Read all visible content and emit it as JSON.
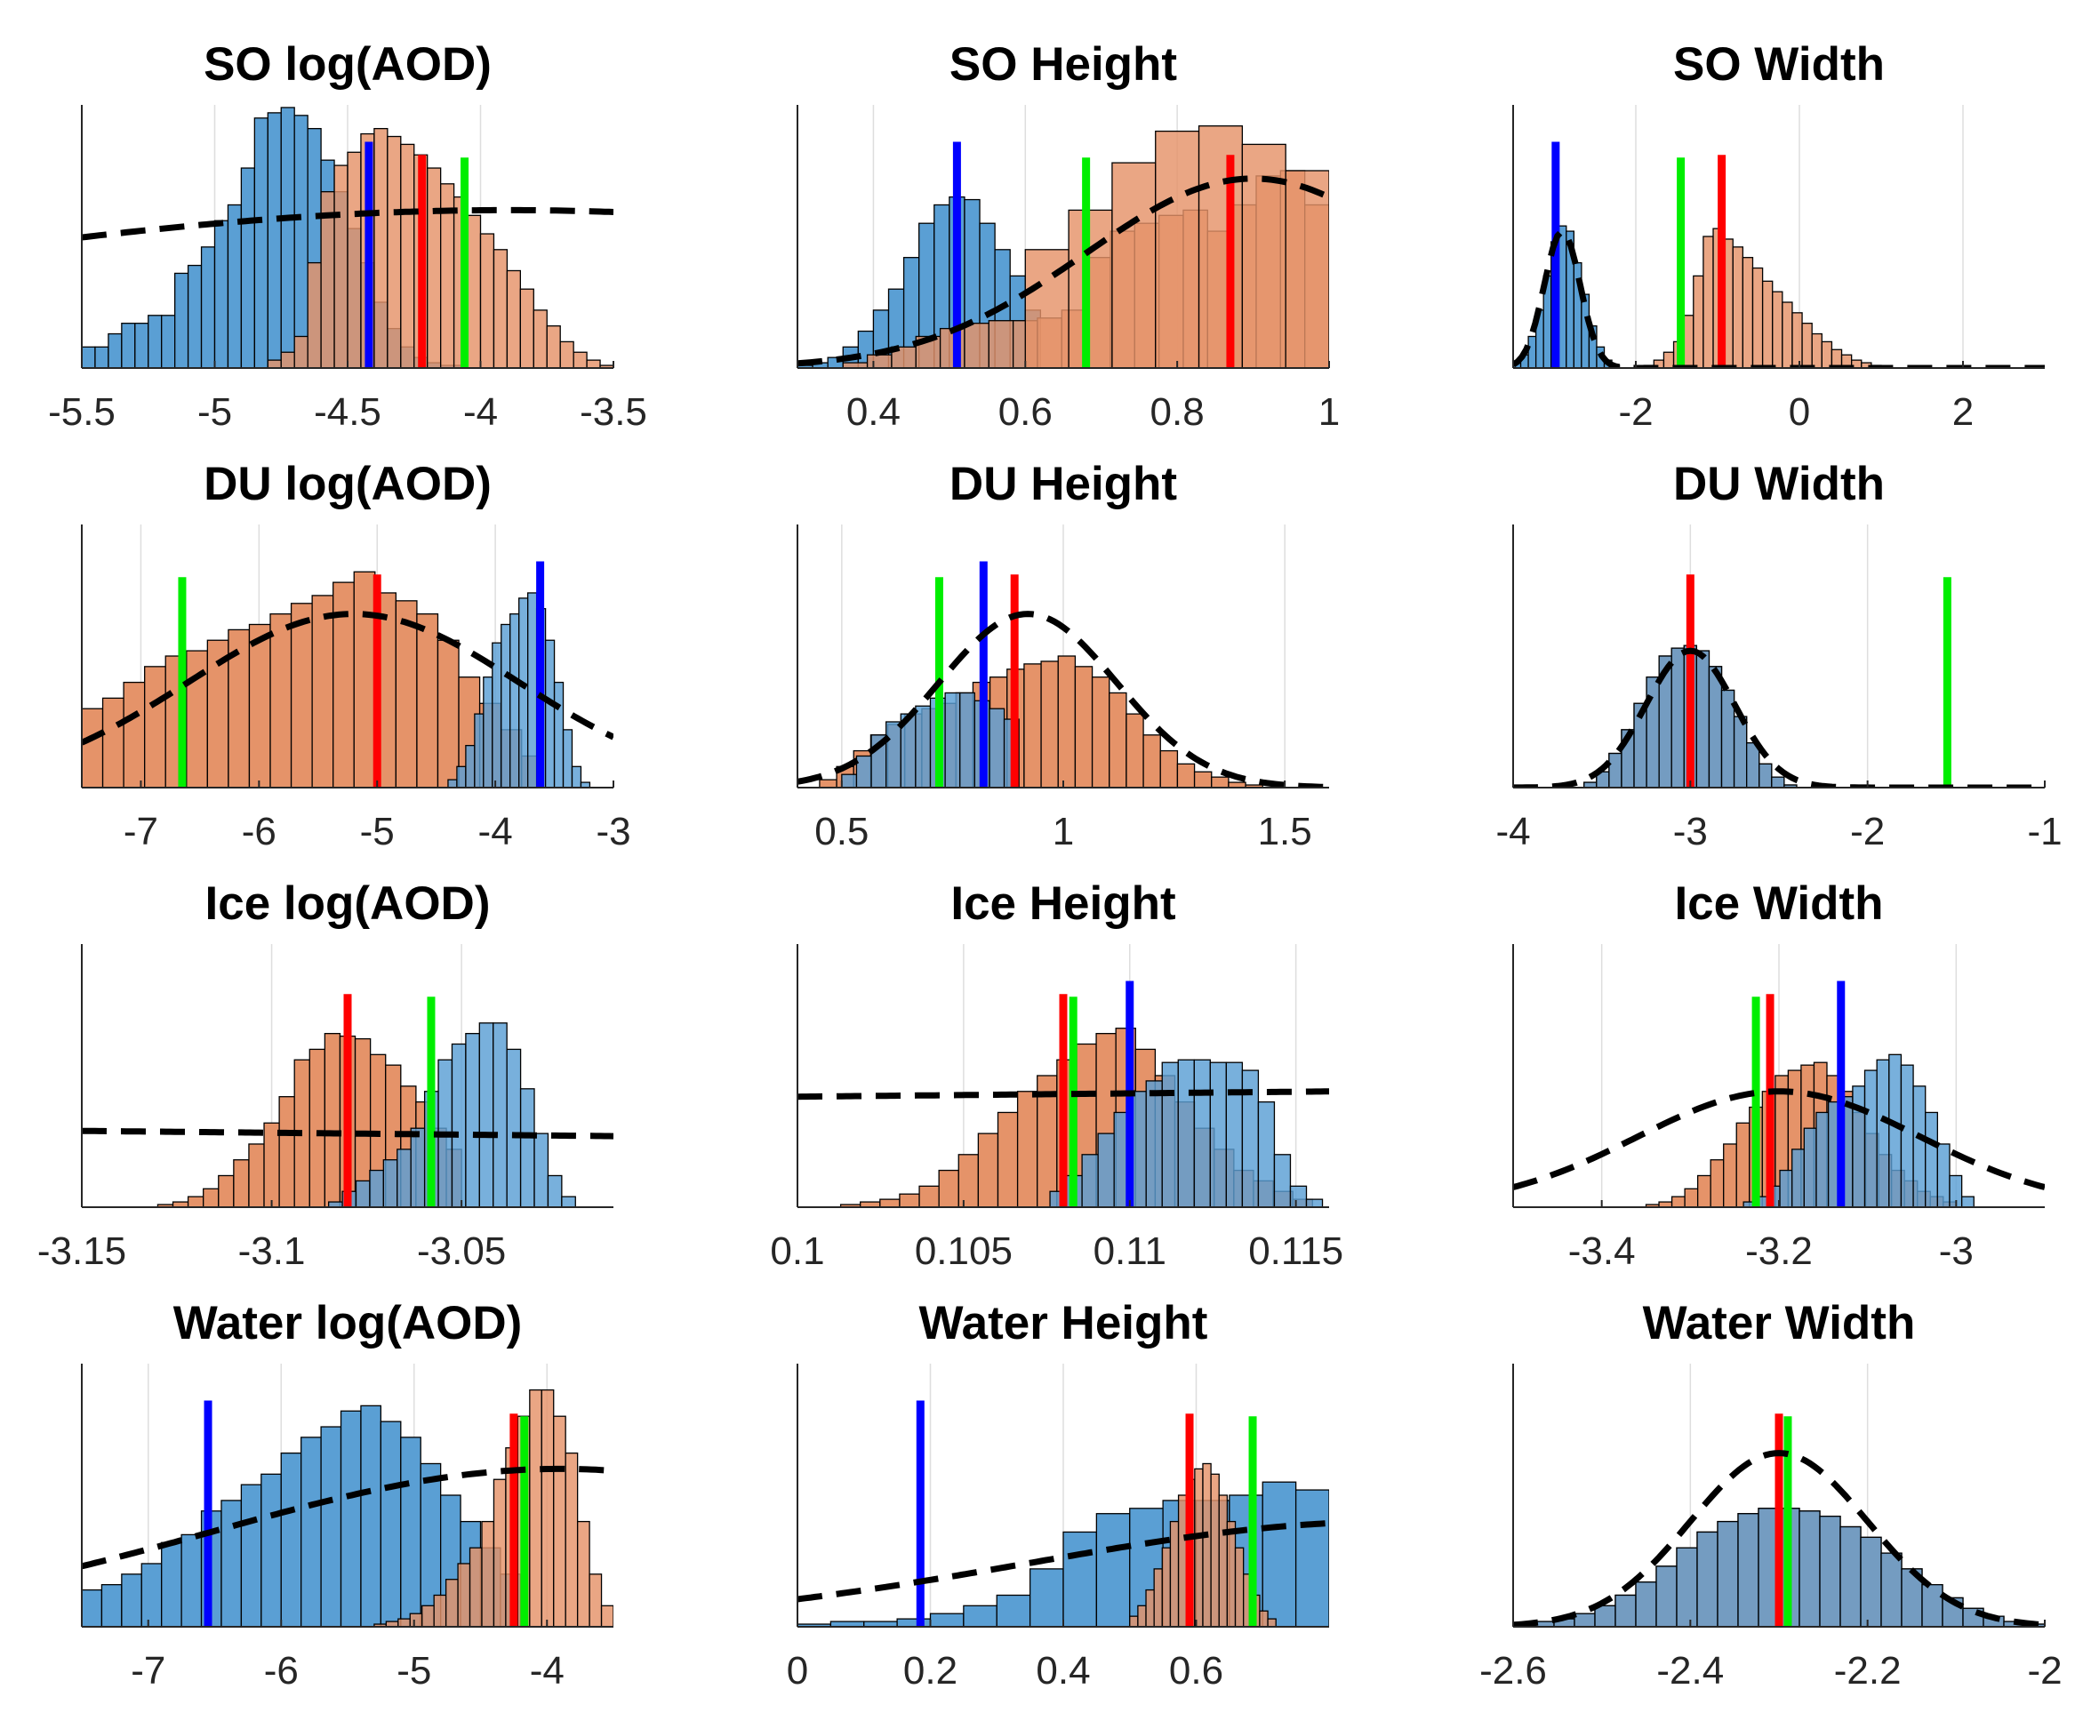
{
  "figure": {
    "layout": "4 rows x 3 columns grid of histogram panels",
    "colors": {
      "hist_a": "#5a9fd4",
      "hist_b": "#e59369",
      "overlap": "#8b6049",
      "bar_edge": "#000000",
      "line_blue": "#0000ff",
      "line_red": "#ff0000",
      "line_green": "#00ee00",
      "prior_line": "#000000",
      "grid": "#dedede"
    }
  },
  "chart_data": [
    {
      "type": "bar",
      "title": "SO log(AOD)",
      "xlim": [
        -5.5,
        -3.5
      ],
      "ticks": [
        -5.5,
        -5,
        -4.5,
        -4,
        -3.5
      ],
      "tick_labels": [
        "-5.5",
        "-5",
        "-4.5",
        "-4",
        "-3.5"
      ],
      "series": [
        {
          "name": "blue histogram",
          "bins": [
            -5.5,
            -3.9
          ],
          "values": [
            8,
            8,
            13,
            17,
            17,
            20,
            20,
            36,
            39,
            46,
            56,
            62,
            76,
            95,
            97,
            99,
            96,
            91,
            79,
            67,
            53,
            40,
            25,
            15,
            8,
            4,
            2,
            1,
            1,
            0,
            0,
            0
          ]
        },
        {
          "name": "orange histogram",
          "bins": [
            -4.8,
            -3.5
          ],
          "values": [
            3,
            6,
            12,
            40,
            67,
            77,
            82,
            89,
            91,
            88,
            85,
            81,
            76,
            70,
            65,
            58,
            51,
            45,
            37,
            30,
            22,
            16,
            10,
            6,
            3,
            1
          ]
        }
      ],
      "vlines": {
        "blue": -4.42,
        "red": -4.22,
        "green": -4.06
      },
      "prior": {
        "kind": "normal",
        "mean": -3.9,
        "sd": 2.6,
        "peak": 60
      },
      "ymax": 100
    },
    {
      "type": "bar",
      "title": "SO Height",
      "xlim": [
        0.3,
        1.0
      ],
      "ticks": [
        0.4,
        0.6,
        0.8,
        1
      ],
      "tick_labels": [
        "0.4",
        "0.6",
        "0.8",
        "1"
      ],
      "series": [
        {
          "name": "blue histogram",
          "bins": [
            0.3,
            0.62
          ],
          "values": [
            1,
            2,
            4,
            8,
            14,
            22,
            30,
            42,
            55,
            62,
            65,
            64,
            55,
            45,
            35,
            22
          ]
        },
        {
          "name": "orange histogram",
          "bins": [
            0.36,
            1.0
          ],
          "values": [
            2,
            5,
            8,
            12,
            15,
            17,
            18,
            18,
            19,
            22,
            42,
            52,
            55,
            58,
            60,
            52,
            62,
            73,
            75,
            62
          ]
        },
        {
          "name": "orange histogram (wide bins)",
          "bins": [
            0.6,
            1.0
          ],
          "values": [
            45,
            60,
            78,
            90,
            92,
            85,
            75
          ]
        }
      ],
      "vlines": {
        "blue": 0.51,
        "red": 0.87,
        "green": 0.68
      },
      "prior": {
        "kind": "normal",
        "mean": 0.9,
        "sd": 0.22,
        "peak": 72
      },
      "ymax": 100
    },
    {
      "type": "bar",
      "title": "SO Width",
      "xlim": [
        -3.5,
        3.0
      ],
      "ticks": [
        -2,
        0,
        2
      ],
      "tick_labels": [
        "-2",
        "0",
        "2"
      ],
      "series": [
        {
          "name": "blue histogram",
          "bins": [
            -3.5,
            -2.2
          ],
          "values": [
            2,
            5,
            12,
            22,
            35,
            48,
            54,
            52,
            40,
            28,
            16,
            8,
            3,
            1
          ]
        },
        {
          "name": "orange histogram",
          "bins": [
            -1.9,
            1.0
          ],
          "values": [
            1,
            3,
            6,
            10,
            20,
            35,
            50,
            53,
            49,
            46,
            42,
            38,
            33,
            29,
            25,
            21,
            17,
            13,
            10,
            7,
            5,
            3,
            2,
            1
          ]
        }
      ],
      "vlines": {
        "blue": -2.98,
        "red": -0.95,
        "green": -1.45
      },
      "prior": {
        "kind": "normal",
        "mean": -2.9,
        "sd": 0.22,
        "peak": 52
      },
      "ymax": 100
    },
    {
      "type": "bar",
      "title": "DU log(AOD)",
      "xlim": [
        -7.5,
        -3.0
      ],
      "ticks": [
        -7,
        -6,
        -5,
        -4,
        -3
      ],
      "tick_labels": [
        "-7",
        "-6",
        "-5",
        "-4",
        "-3"
      ],
      "series": [
        {
          "name": "orange histogram",
          "bins": [
            -7.5,
            -3.6
          ],
          "values": [
            30,
            34,
            40,
            46,
            50,
            52,
            56,
            60,
            62,
            66,
            70,
            73,
            78,
            82,
            74,
            71,
            66,
            56,
            42,
            32,
            22,
            12
          ]
        },
        {
          "name": "blue histogram",
          "bins": [
            -4.4,
            -3.2
          ],
          "values": [
            3,
            8,
            16,
            28,
            42,
            55,
            62,
            66,
            72,
            74,
            68,
            56,
            40,
            22,
            8,
            2
          ]
        }
      ],
      "vlines": {
        "blue": -3.62,
        "red": -5.0,
        "green": -6.65
      },
      "prior": {
        "kind": "normal",
        "mean": -5.2,
        "sd": 1.4,
        "peak": 66
      },
      "ymax": 100
    },
    {
      "type": "bar",
      "title": "DU Height",
      "xlim": [
        0.4,
        1.6
      ],
      "ticks": [
        0.5,
        1,
        1.5
      ],
      "tick_labels": [
        "0.5",
        "1",
        "1.5"
      ],
      "series": [
        {
          "name": "orange histogram",
          "bins": [
            0.45,
            1.45
          ],
          "values": [
            3,
            8,
            14,
            20,
            24,
            28,
            30,
            32,
            36,
            40,
            42,
            45,
            47,
            48,
            50,
            46,
            42,
            36,
            28,
            20,
            14,
            9,
            6,
            4,
            2,
            1
          ]
        },
        {
          "name": "blue histogram",
          "bins": [
            0.5,
            0.9
          ],
          "values": [
            5,
            12,
            20,
            25,
            28,
            31,
            34,
            36,
            36,
            33,
            30,
            26
          ]
        }
      ],
      "vlines": {
        "blue": 0.82,
        "red": 0.89,
        "green": 0.72
      },
      "prior": {
        "kind": "normal",
        "mean": 0.92,
        "sd": 0.2,
        "peak": 66
      },
      "ymax": 100
    },
    {
      "type": "bar",
      "title": "DU Width",
      "xlim": [
        -4.0,
        -1.0
      ],
      "ticks": [
        -4,
        -3,
        -2,
        -1
      ],
      "tick_labels": [
        "-4",
        "-3",
        "-2",
        "-1"
      ],
      "series": [
        {
          "name": "orange histogram",
          "bins": [
            -3.6,
            -2.4
          ],
          "values": [
            2,
            6,
            13,
            22,
            32,
            42,
            50,
            53,
            54,
            52,
            46,
            37,
            27,
            17,
            9,
            4,
            1
          ]
        },
        {
          "name": "blue histogram",
          "bins": [
            -3.6,
            -2.4
          ],
          "values": [
            2,
            6,
            13,
            22,
            32,
            42,
            50,
            53,
            54,
            52,
            46,
            37,
            27,
            17,
            9,
            4,
            1
          ]
        }
      ],
      "vlines": {
        "red": -3.0,
        "green": -1.55
      },
      "prior": {
        "kind": "normal",
        "mean": -3.0,
        "sd": 0.25,
        "peak": 52
      },
      "ymax": 100
    },
    {
      "type": "bar",
      "title": "Ice log(AOD)",
      "xlim": [
        -3.15,
        -3.01
      ],
      "ticks": [
        -3.15,
        -3.1,
        -3.05
      ],
      "tick_labels": [
        "-3.15",
        "-3.1",
        "-3.05"
      ],
      "series": [
        {
          "name": "orange histogram",
          "bins": [
            -3.13,
            -3.05
          ],
          "values": [
            1,
            2,
            4,
            7,
            12,
            18,
            24,
            32,
            42,
            56,
            60,
            66,
            65,
            64,
            58,
            54,
            46,
            40,
            30,
            22
          ]
        },
        {
          "name": "blue histogram",
          "bins": [
            -3.085,
            -3.02
          ],
          "values": [
            2,
            6,
            10,
            14,
            18,
            22,
            30,
            44,
            56,
            62,
            66,
            70,
            70,
            60,
            45,
            28,
            12,
            4
          ]
        }
      ],
      "vlines": {
        "red": -3.08,
        "green": -3.058
      },
      "prior": {
        "kind": "flat",
        "from": 29,
        "to": 27
      },
      "ymax": 100
    },
    {
      "type": "bar",
      "title": "Ice Height",
      "xlim": [
        0.1,
        0.116
      ],
      "ticks": [
        0.1,
        0.105,
        0.11,
        0.115
      ],
      "tick_labels": [
        "0.1",
        "0.105",
        "0.11",
        "0.115"
      ],
      "series": [
        {
          "name": "orange histogram",
          "bins": [
            0.1013,
            0.1155
          ],
          "values": [
            1,
            2,
            3,
            5,
            8,
            14,
            20,
            28,
            36,
            44,
            50,
            56,
            62,
            66,
            68,
            60,
            50,
            40,
            30,
            22,
            14,
            10,
            6,
            3
          ]
        },
        {
          "name": "blue histogram",
          "bins": [
            0.1076,
            0.1158
          ],
          "values": [
            6,
            12,
            20,
            28,
            36,
            44,
            48,
            55,
            56,
            56,
            55,
            55,
            52,
            40,
            20,
            8,
            3
          ]
        }
      ],
      "vlines": {
        "blue": 0.11,
        "red": 0.108,
        "green": 0.1083
      },
      "prior": {
        "kind": "flat",
        "from": 42,
        "to": 44
      },
      "ymax": 100
    },
    {
      "type": "bar",
      "title": "Ice Width",
      "xlim": [
        -3.5,
        -2.9
      ],
      "ticks": [
        -3.4,
        -3.2,
        -3.0
      ],
      "tick_labels": [
        "-3.4",
        "-3.2",
        "-3"
      ],
      "series": [
        {
          "name": "orange histogram",
          "bins": [
            -3.35,
            -3.0
          ],
          "values": [
            1,
            2,
            4,
            7,
            12,
            18,
            24,
            32,
            38,
            44,
            50,
            52,
            54,
            55,
            50,
            44,
            36,
            28,
            20,
            14,
            10,
            6,
            4,
            2
          ]
        },
        {
          "name": "blue histogram",
          "bins": [
            -3.24,
            -2.98
          ],
          "values": [
            2,
            4,
            8,
            14,
            22,
            30,
            36,
            40,
            42,
            46,
            52,
            56,
            58,
            54,
            46,
            36,
            24,
            12,
            4
          ]
        }
      ],
      "vlines": {
        "blue": -3.13,
        "red": -3.21,
        "green": -3.226
      },
      "prior": {
        "kind": "normal",
        "mean": -3.2,
        "sd": 0.16,
        "peak": 44
      },
      "ymax": 100
    },
    {
      "type": "bar",
      "title": "Water log(AOD)",
      "xlim": [
        -7.5,
        -3.5
      ],
      "ticks": [
        -7,
        -6,
        -5,
        -4
      ],
      "tick_labels": [
        "-7",
        "-6",
        "-5",
        "-4"
      ],
      "series": [
        {
          "name": "blue histogram",
          "bins": [
            -7.5,
            -4.2
          ],
          "values": [
            14,
            16,
            20,
            24,
            32,
            35,
            44,
            48,
            54,
            58,
            66,
            72,
            76,
            82,
            84,
            78,
            72,
            62,
            50,
            40,
            30,
            20
          ]
        },
        {
          "name": "orange histogram",
          "bins": [
            -5.3,
            -3.5
          ],
          "values": [
            1,
            2,
            3,
            5,
            8,
            12,
            18,
            24,
            30,
            40,
            56,
            68,
            80,
            90,
            90,
            80,
            66,
            40,
            20,
            8
          ]
        }
      ],
      "vlines": {
        "blue": -6.55,
        "red": -4.25,
        "green": -4.17
      },
      "prior": {
        "kind": "normal",
        "mean": -3.9,
        "sd": 2.6,
        "peak": 60
      },
      "ymax": 100
    },
    {
      "type": "bar",
      "title": "Water Height",
      "xlim": [
        0,
        0.8
      ],
      "ticks": [
        0,
        0.2,
        0.4,
        0.6
      ],
      "tick_labels": [
        "0",
        "0.2",
        "0.4",
        "0.6"
      ],
      "series": [
        {
          "name": "blue histogram",
          "bins": [
            0,
            0.8
          ],
          "values": [
            1,
            2,
            2,
            3,
            5,
            8,
            12,
            22,
            36,
            43,
            45,
            48,
            48,
            50,
            55,
            52
          ]
        },
        {
          "name": "orange histogram",
          "bins": [
            0.5,
            0.72
          ],
          "values": [
            4,
            8,
            14,
            22,
            30,
            40,
            50,
            56,
            60,
            62,
            58,
            50,
            40,
            30,
            20,
            12,
            6,
            3
          ]
        }
      ],
      "vlines": {
        "blue": 0.185,
        "red": 0.59,
        "green": 0.685
      },
      "prior": {
        "kind": "normal",
        "mean": 0.9,
        "sd": 0.55,
        "peak": 40
      },
      "ymax": 100
    },
    {
      "type": "bar",
      "title": "Water Width",
      "xlim": [
        -2.6,
        -2.0
      ],
      "ticks": [
        -2.6,
        -2.4,
        -2.2,
        -2
      ],
      "tick_labels": [
        "-2.6",
        "-2.4",
        "-2.2",
        "-2"
      ],
      "series": [
        {
          "name": "orange histogram",
          "bins": [
            -2.6,
            -2.0
          ],
          "values": [
            1,
            2,
            3,
            5,
            8,
            12,
            17,
            23,
            30,
            36,
            40,
            43,
            45,
            45,
            44,
            42,
            38,
            34,
            28,
            22,
            16,
            11,
            7,
            4,
            2,
            1
          ]
        },
        {
          "name": "blue histogram",
          "bins": [
            -2.6,
            -2.0
          ],
          "values": [
            1,
            2,
            3,
            5,
            8,
            12,
            17,
            23,
            30,
            36,
            40,
            43,
            45,
            45,
            44,
            42,
            38,
            34,
            28,
            22,
            16,
            11,
            7,
            4,
            2,
            1
          ]
        }
      ],
      "vlines": {
        "red": -2.3,
        "green": -2.29
      },
      "prior": {
        "kind": "normal",
        "mean": -2.3,
        "sd": 0.1,
        "peak": 66
      },
      "ymax": 100
    }
  ]
}
